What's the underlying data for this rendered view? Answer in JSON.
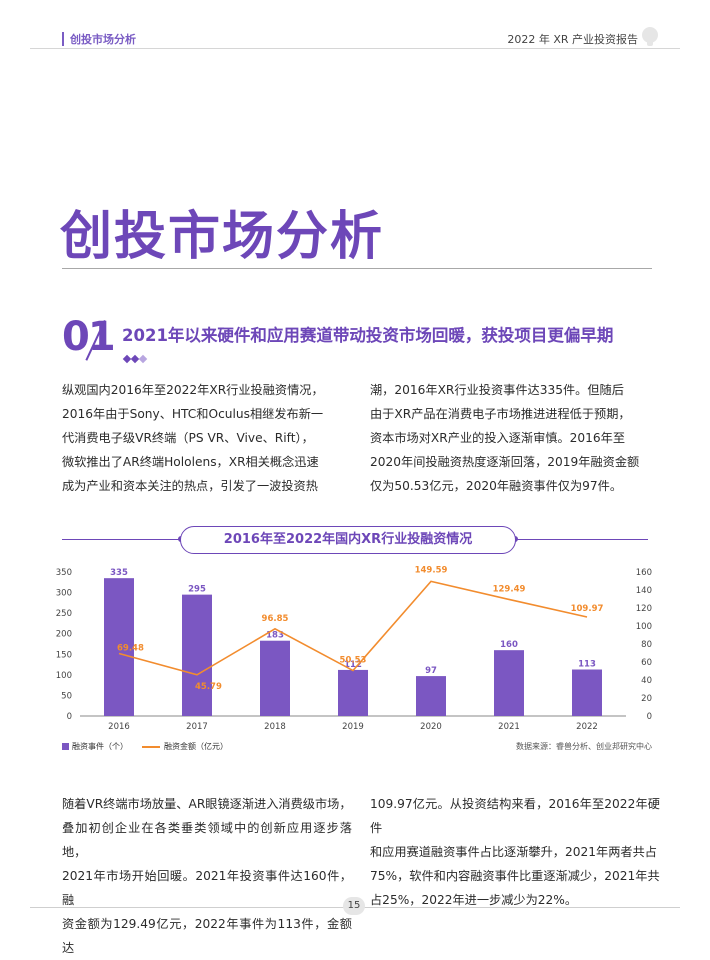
{
  "header": {
    "section": "创投市场分析",
    "report": "2022 年 XR 产业投资报告"
  },
  "page_title": "创投市场分析",
  "section": {
    "number": "01",
    "title": "2021年以来硬件和应用赛道带动投资市场回暖，获投项目更偏早期"
  },
  "paragraphs": {
    "p1": "纵观国内2016年至2022年XR行业投融资情况，\n2016年由于Sony、HTC和Oculus相继发布新一\n代消费电子级VR终端（PS VR、Vive、Rift），\n微软推出了AR终端Hololens，XR相关概念迅速\n成为产业和资本关注的热点，引发了一波投资热",
    "p2": "潮，2016年XR行业投资事件达335件。但随后\n由于XR产品在消费电子市场推进进程低于预期，\n资本市场对XR产业的投入逐渐审慎。2016年至\n2020年间投融资热度逐渐回落，2019年融资金额\n仅为50.53亿元，2020年融资事件仅为97件。",
    "p3": "随着VR终端市场放量、AR眼镜逐渐进入消费级市场，\n叠加初创企业在各类垂类领域中的创新应用逐步落地，\n2021年市场开始回暖。2021年投资事件达160件，融\n资金额为129.49亿元，2022年事件为113件，金额达",
    "p4": "109.97亿元。从投资结构来看，2016年至2022年硬件\n和应用赛道融资事件占比逐渐攀升，2021年两者共占\n75%，软件和内容融资事件比重逐渐减少，2021年共\n占25%，2022年进一步减少为22%。"
  },
  "chart_data": {
    "type": "bar+line",
    "title": "2016年至2022年国内XR行业投融资情况",
    "categories": [
      "2016",
      "2017",
      "2018",
      "2019",
      "2020",
      "2021",
      "2022"
    ],
    "series": [
      {
        "name": "融资事件（个）",
        "type": "bar",
        "axis": "left",
        "values": [
          335,
          295,
          183,
          112,
          97,
          160,
          113
        ],
        "labels": [
          "335",
          "295",
          "183",
          "112",
          "97",
          "160",
          "113"
        ]
      },
      {
        "name": "融资金额（亿元）",
        "type": "line",
        "axis": "right",
        "values": [
          69.48,
          45.79,
          96.85,
          50.53,
          149.59,
          129.49,
          109.97
        ],
        "labels": [
          "69.48",
          "45.79",
          "96.85",
          "50.53",
          "149.59",
          "129.49",
          "109.97"
        ]
      }
    ],
    "y_left": {
      "min": 0,
      "max": 350,
      "ticks": [
        "0",
        "50",
        "100",
        "150",
        "200",
        "250",
        "300",
        "350"
      ]
    },
    "y_right": {
      "min": 0,
      "max": 160,
      "ticks": [
        "0",
        "20",
        "40",
        "60",
        "80",
        "100",
        "120",
        "140",
        "160"
      ]
    },
    "legend_position": "bottom-left",
    "colors": {
      "bar": "#7b57c2",
      "line": "#f28c2e",
      "axis": "#888888"
    },
    "source": "数据来源：睿兽分析、创业邦研究中心"
  },
  "legend": {
    "bars": "融资事件（个）",
    "line": "融资金额（亿元）"
  },
  "footer": {
    "page": "15"
  },
  "colors": {
    "accent": "#6d47b8"
  }
}
